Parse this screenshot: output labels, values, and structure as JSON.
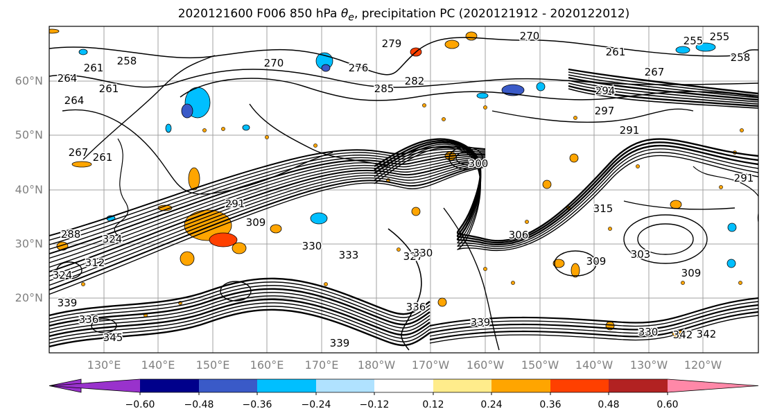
{
  "title": "2020121600 F006 850 hPa θe, precipitation PC (2020121912 - 2020122012)",
  "map": {
    "lat_labels": [
      "60°N",
      "50°N",
      "40°N",
      "30°N",
      "20°N"
    ],
    "lon_labels": [
      "130°E",
      "140°E",
      "150°E",
      "160°E",
      "170°E",
      "180°W",
      "170°W",
      "160°W",
      "150°W",
      "140°W",
      "130°W",
      "120°W"
    ],
    "contour_labels": [
      "264",
      "258",
      "261",
      "264",
      "261",
      "267",
      "261",
      "291",
      "309",
      "288",
      "324",
      "312",
      "324",
      "330",
      "339",
      "336",
      "333",
      "327",
      "330",
      "336",
      "339",
      "339",
      "342",
      "345",
      "276",
      "270",
      "279",
      "285",
      "282",
      "270",
      "255",
      "261",
      "258",
      "267",
      "297",
      "294",
      "291",
      "300",
      "306",
      "315",
      "309",
      "303",
      "309",
      "330",
      "342",
      "291",
      "255"
    ],
    "colors": {
      "land_lines": "#000000",
      "grid": "#a0a0a0"
    }
  },
  "colorbar": {
    "ticks": [
      "−0.60",
      "−0.48",
      "−0.36",
      "−0.24",
      "−0.12",
      "0.12",
      "0.24",
      "0.36",
      "0.48",
      "0.60"
    ],
    "colors": [
      "#9932cc",
      "#00008b",
      "#3a5ac8",
      "#00bfff",
      "#b0e2ff",
      "#ffffff",
      "#ffec8b",
      "#ffa500",
      "#ff4000",
      "#b22222",
      "#ff88a8"
    ]
  }
}
